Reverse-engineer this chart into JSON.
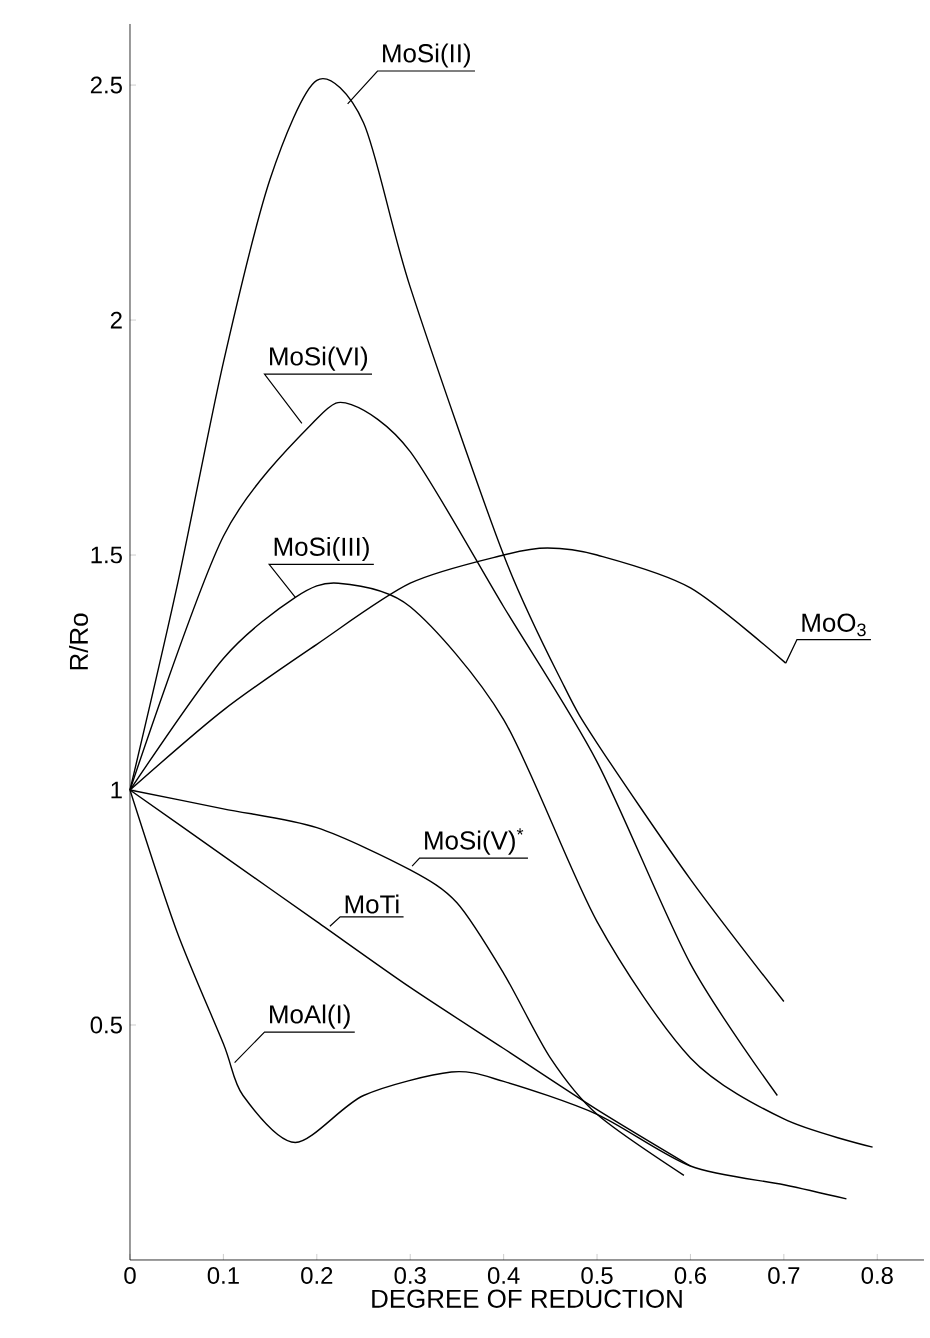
{
  "chart_data": {
    "type": "line",
    "xlabel": "DEGREE OF REDUCTION",
    "ylabel": "R/Ro",
    "xlim": [
      0,
      0.85
    ],
    "ylim": [
      0,
      2.63
    ],
    "xticks": [
      0,
      0.1,
      0.2,
      0.3,
      0.4,
      0.5,
      0.6,
      0.7,
      0.8
    ],
    "yticks": [
      0.5,
      1,
      1.5,
      2,
      2.5
    ],
    "marker": "none",
    "line_style": "solid",
    "grid": false,
    "series": [
      {
        "name": "MoSi(II)",
        "color": "#000000",
        "x": [
          0,
          0.05,
          0.1,
          0.15,
          0.2,
          0.25,
          0.3,
          0.4,
          0.465,
          0.5,
          0.6,
          0.7
        ],
        "values": [
          1,
          1.43,
          1.91,
          2.3,
          2.51,
          2.42,
          2.07,
          1.5,
          1.22,
          1.1,
          0.81,
          0.55
        ]
      },
      {
        "name": "MoSi(VI)",
        "color": "#000000",
        "x": [
          0,
          0.1,
          0.2,
          0.237,
          0.3,
          0.4,
          0.5,
          0.6,
          0.693
        ],
        "values": [
          1,
          1.54,
          1.79,
          1.82,
          1.72,
          1.39,
          1.06,
          0.63,
          0.35
        ]
      },
      {
        "name": "MoSi(III)",
        "color": "#000000",
        "x": [
          0,
          0.1,
          0.177,
          0.223,
          0.3,
          0.4,
          0.5,
          0.6,
          0.7,
          0.795
        ],
        "values": [
          1,
          1.28,
          1.41,
          1.44,
          1.39,
          1.15,
          0.72,
          0.43,
          0.3,
          0.24
        ]
      },
      {
        "name": "MoO$_{3}$",
        "color": "#000000",
        "x": [
          0,
          0.1,
          0.2,
          0.3,
          0.4,
          0.447,
          0.5,
          0.6,
          0.702
        ],
        "values": [
          1,
          1.17,
          1.31,
          1.44,
          1.5,
          1.515,
          1.5,
          1.43,
          1.27
        ]
      },
      {
        "name": "MoSi(V)$^{*}$",
        "color": "#000000",
        "x": [
          0,
          0.1,
          0.2,
          0.3,
          0.35,
          0.4,
          0.45,
          0.5,
          0.593
        ],
        "values": [
          1,
          0.96,
          0.92,
          0.83,
          0.76,
          0.61,
          0.43,
          0.31,
          0.18
        ]
      },
      {
        "name": "MoTi",
        "color": "#000000",
        "x": [
          0,
          0.1,
          0.2,
          0.3,
          0.4,
          0.5,
          0.6
        ],
        "values": [
          1,
          0.86,
          0.72,
          0.58,
          0.45,
          0.32,
          0.2
        ]
      },
      {
        "name": "MoAl(I)",
        "color": "#000000",
        "x": [
          0,
          0.05,
          0.1,
          0.121,
          0.177,
          0.25,
          0.344,
          0.4,
          0.5,
          0.6,
          0.7,
          0.767
        ],
        "values": [
          1,
          0.7,
          0.46,
          0.35,
          0.25,
          0.35,
          0.4,
          0.38,
          0.31,
          0.2,
          0.16,
          0.13
        ]
      }
    ]
  }
}
